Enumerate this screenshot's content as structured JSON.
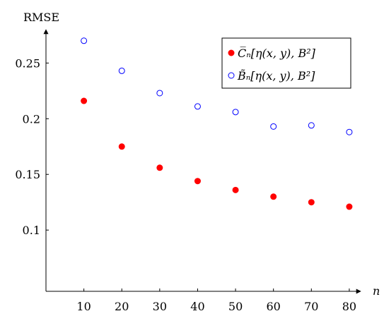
{
  "chart_data": {
    "type": "scatter",
    "ylabel": "RMSE",
    "xlabel": "n",
    "x": [
      10,
      20,
      30,
      40,
      50,
      60,
      70,
      80
    ],
    "xticks": [
      10,
      20,
      30,
      40,
      50,
      60,
      70,
      80
    ],
    "yticks": [
      0.1,
      0.15,
      0.2,
      0.25
    ],
    "ytick_labels": [
      "0.1",
      "0.15",
      "0.2",
      "0.25"
    ],
    "xlim": [
      0,
      83
    ],
    "ylim": [
      0.045,
      0.28
    ],
    "grid": false,
    "legend_position": "top-right",
    "series": [
      {
        "name": "C̅ₙ[η(x, y), B²]",
        "marker": "filled-circle",
        "color": "#ff0000",
        "values": [
          0.216,
          0.175,
          0.156,
          0.144,
          0.136,
          0.13,
          0.125,
          0.121
        ]
      },
      {
        "name": "B̃ₙ[η(x, y), B²]",
        "marker": "open-circle",
        "color": "#0000ff",
        "values": [
          0.27,
          0.243,
          0.223,
          0.211,
          0.206,
          0.193,
          0.194,
          0.188
        ]
      }
    ]
  }
}
